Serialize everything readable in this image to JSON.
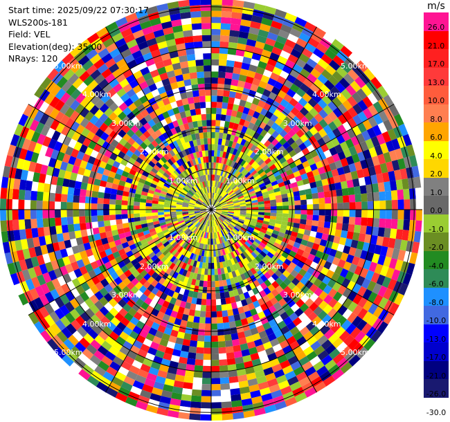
{
  "info": {
    "start_time": "Start time: 2025/09/22 07:30:17",
    "instrument": "WLS200s-181",
    "field": "Field: VEL",
    "elevation": "Elevation(deg): 35.00",
    "nrays": "NRays: 120"
  },
  "colorbar": {
    "unit": "m/s",
    "levels": [
      {
        "label": "26.0",
        "color": "#ff1493"
      },
      {
        "label": "21.0",
        "color": "#ff0000"
      },
      {
        "label": "17.0",
        "color": "#ff2020"
      },
      {
        "label": "13.0",
        "color": "#ff3a3a"
      },
      {
        "label": "10.0",
        "color": "#ff5c3c"
      },
      {
        "label": "8.0",
        "color": "#ff7f50"
      },
      {
        "label": "6.0",
        "color": "#ffa500"
      },
      {
        "label": "4.0",
        "color": "#ffff00"
      },
      {
        "label": "2.0",
        "color": "#ffd700"
      },
      {
        "label": "1.0",
        "color": "#808080"
      },
      {
        "label": "0.0",
        "color": "#696969"
      },
      {
        "label": "-1.0",
        "color": "#9acd32"
      },
      {
        "label": "-2.0",
        "color": "#6b8e23"
      },
      {
        "label": "-4.0",
        "color": "#228b22"
      },
      {
        "label": "-6.0",
        "color": "#2e8b57"
      },
      {
        "label": "-8.0",
        "color": "#1e90ff"
      },
      {
        "label": "-10.0",
        "color": "#4169e1"
      },
      {
        "label": "-13.0",
        "color": "#0000ff"
      },
      {
        "label": "-17.0",
        "color": "#0000cd"
      },
      {
        "label": "-21.0",
        "color": "#000080"
      },
      {
        "label": "-26.0",
        "color": "#191970"
      },
      {
        "label": "-30.0",
        "color": "#191970"
      }
    ]
  },
  "chart_data": {
    "type": "heatmap",
    "projection": "polar-ppi",
    "field": "VEL",
    "units": "m/s",
    "nrays": 120,
    "elevation_deg": 35.0,
    "range_rings": [
      {
        "range_km": 1,
        "label": "1.00km"
      },
      {
        "range_km": 2,
        "label": "2.00km"
      },
      {
        "range_km": 3,
        "label": "3.00km"
      },
      {
        "range_km": 4,
        "label": "4.00km"
      },
      {
        "range_km": 5,
        "label": "5.00km"
      }
    ],
    "max_range_km": 5.2,
    "ring_label_angles_deg": [
      45,
      135,
      225,
      315
    ],
    "spokes_deg": [
      0,
      30,
      60,
      90,
      120,
      150,
      180,
      210,
      240,
      270,
      300,
      330
    ],
    "gate_pattern": "noisy / mostly aliased"
  }
}
